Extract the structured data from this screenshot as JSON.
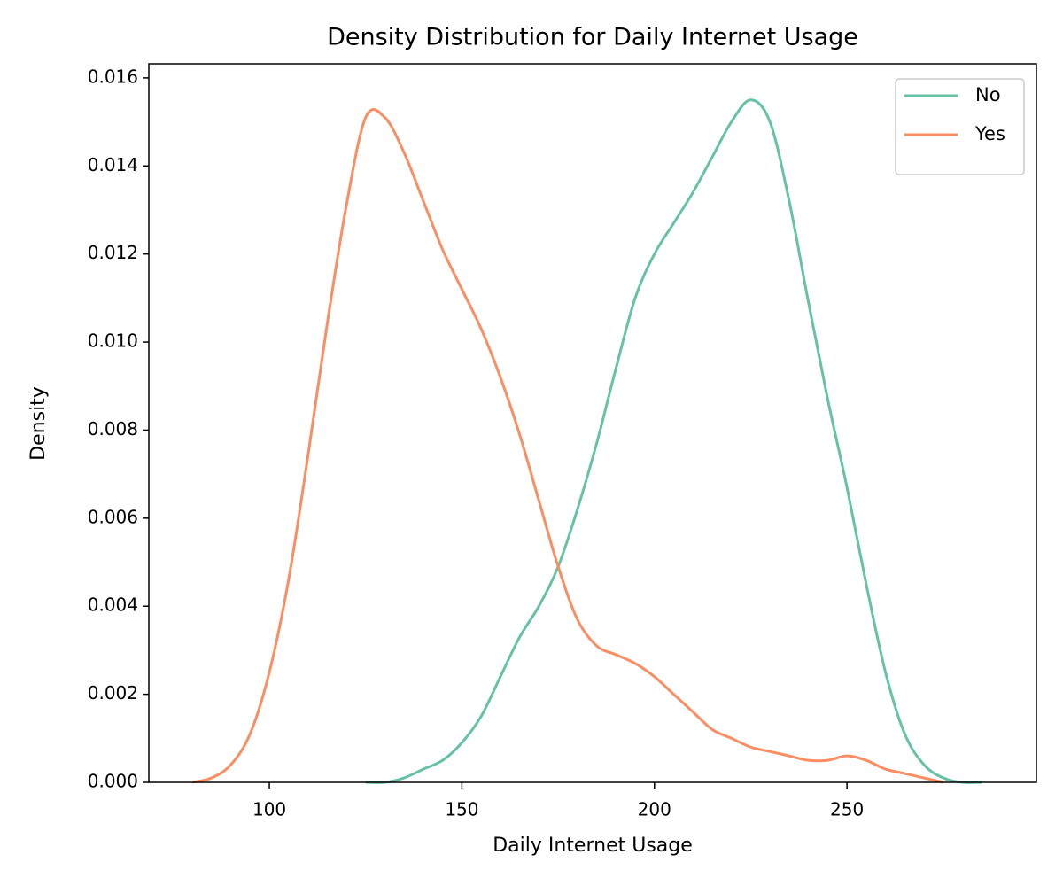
{
  "chart_data": {
    "type": "line",
    "title": "Density Distribution for Daily Internet Usage",
    "xlabel": "Daily Internet Usage",
    "ylabel": "Density",
    "x": [
      80,
      85,
      90,
      95,
      100,
      105,
      110,
      115,
      120,
      125,
      130,
      135,
      140,
      145,
      150,
      155,
      160,
      165,
      170,
      175,
      180,
      185,
      190,
      195,
      200,
      205,
      210,
      215,
      220,
      225,
      230,
      235,
      240,
      245,
      250,
      255,
      260,
      265,
      270,
      275,
      280,
      285
    ],
    "series": [
      {
        "name": "No",
        "color": "#66c2a5",
        "values": [
          null,
          null,
          null,
          null,
          null,
          null,
          null,
          null,
          null,
          0,
          0,
          0.0001,
          0.0003,
          0.0005,
          0.0009,
          0.0015,
          0.0024,
          0.0033,
          0.004,
          0.0049,
          0.0062,
          0.0077,
          0.0094,
          0.011,
          0.012,
          0.0127,
          0.0134,
          0.0142,
          0.015,
          0.0155,
          0.015,
          0.0132,
          0.0109,
          0.0087,
          0.0067,
          0.0045,
          0.0025,
          0.0011,
          0.0004,
          0.0001,
          0,
          0
        ]
      },
      {
        "name": "Yes",
        "color": "#fc8d62",
        "values": [
          0,
          0.0001,
          0.0004,
          0.0011,
          0.0025,
          0.0046,
          0.0074,
          0.0104,
          0.0131,
          0.0151,
          0.0151,
          0.0143,
          0.0132,
          0.0121,
          0.0112,
          0.0103,
          0.0092,
          0.0079,
          0.0064,
          0.0049,
          0.0037,
          0.0031,
          0.0029,
          0.0027,
          0.0024,
          0.002,
          0.0016,
          0.0012,
          0.001,
          0.0008,
          0.0007,
          0.0006,
          0.0005,
          0.0005,
          0.0006,
          0.0005,
          0.0003,
          0.0002,
          0.0001,
          0,
          null,
          null
        ]
      }
    ],
    "xlim": [
      68.7,
      299.2
    ],
    "ylim": [
      0,
      0.01632
    ],
    "xticks": [
      100,
      150,
      200,
      250
    ],
    "yticks": [
      {
        "value": 0,
        "label": "0.000"
      },
      {
        "value": 0.002,
        "label": "0.002"
      },
      {
        "value": 0.004,
        "label": "0.004"
      },
      {
        "value": 0.006,
        "label": "0.006"
      },
      {
        "value": 0.008,
        "label": "0.008"
      },
      {
        "value": 0.01,
        "label": "0.010"
      },
      {
        "value": 0.012,
        "label": "0.012"
      },
      {
        "value": 0.014,
        "label": "0.014"
      },
      {
        "value": 0.016,
        "label": "0.016"
      }
    ],
    "legend": "upper right",
    "grid": false
  }
}
